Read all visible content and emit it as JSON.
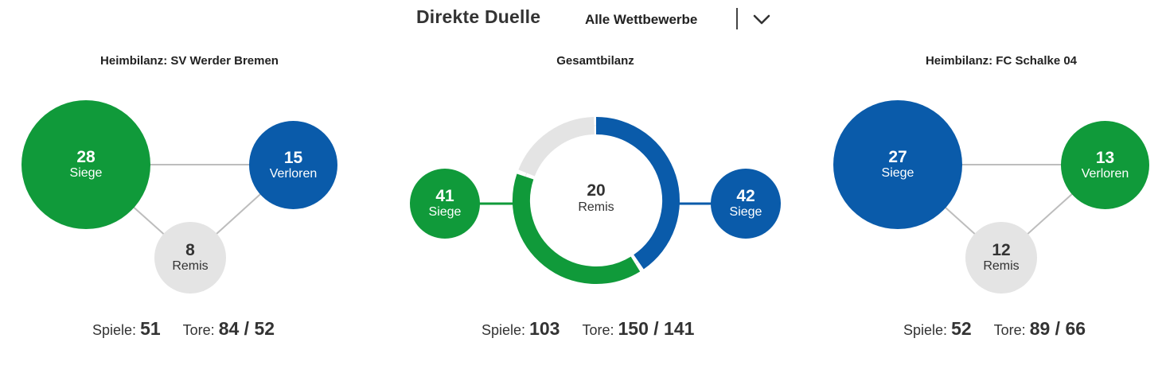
{
  "header": {
    "title": "Direkte Duelle",
    "competition_filter": "Alle Wettbewerbe",
    "chevron_icon": "chevron-down-icon"
  },
  "home_left": {
    "title": "Heimbilanz: SV Werder Bremen",
    "wins": {
      "value": "28",
      "label": "Siege"
    },
    "losses": {
      "value": "15",
      "label": "Verloren"
    },
    "draws": {
      "value": "8",
      "label": "Remis"
    },
    "games_label": "Spiele:",
    "games": "51",
    "goals_label": "Tore:",
    "goals": "84 / 52"
  },
  "overall": {
    "title": "Gesamtbilanz",
    "left_wins": {
      "value": "41",
      "label": "Siege"
    },
    "draws": {
      "value": "20",
      "label": "Remis"
    },
    "right_wins": {
      "value": "42",
      "label": "Siege"
    },
    "games_label": "Spiele:",
    "games": "103",
    "goals_label": "Tore:",
    "goals": "150 / 141"
  },
  "home_right": {
    "title": "Heimbilanz: FC Schalke 04",
    "wins": {
      "value": "27",
      "label": "Siege"
    },
    "losses": {
      "value": "13",
      "label": "Verloren"
    },
    "draws": {
      "value": "12",
      "label": "Remis"
    },
    "games_label": "Spiele:",
    "games": "52",
    "goals_label": "Tore:",
    "goals": "89 / 66"
  },
  "colors": {
    "werder_green": "#109a3a",
    "schalke_blue": "#0a5baa",
    "draw_grey": "#e4e4e4"
  }
}
